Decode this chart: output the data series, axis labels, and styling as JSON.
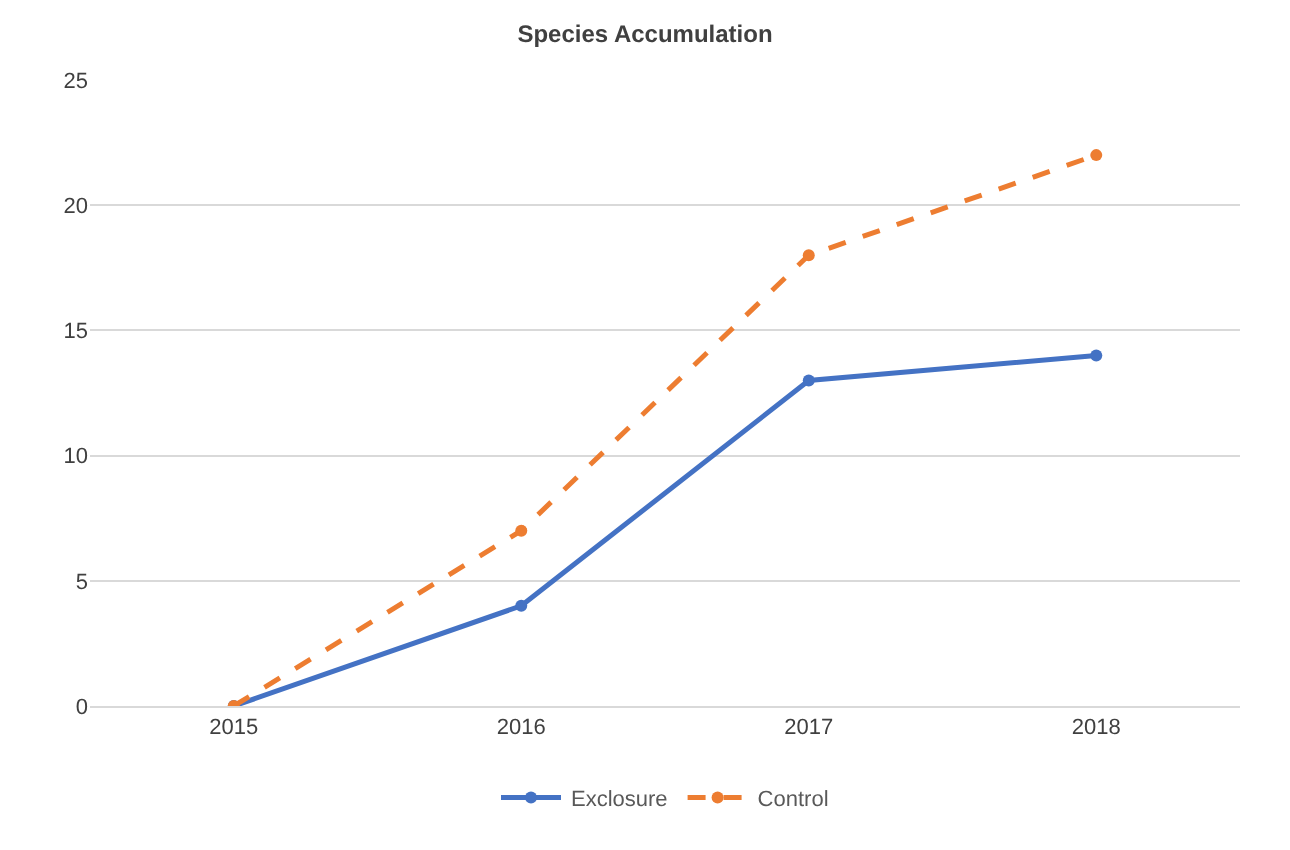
{
  "chart_data": {
    "type": "line",
    "title": "Species Accumulation",
    "categories": [
      "2015",
      "2016",
      "2017",
      "2018"
    ],
    "series": [
      {
        "name": "Exclosure",
        "color": "#4472c4",
        "values": [
          0,
          4,
          13,
          14
        ],
        "line_style": "solid"
      },
      {
        "name": "Control",
        "color": "#ed7d31",
        "values": [
          0,
          7,
          18,
          22
        ],
        "line_style": "dashed"
      }
    ],
    "ylim": [
      0,
      25
    ],
    "yticks": [
      0,
      5,
      10,
      15,
      20,
      25
    ],
    "grid": "y",
    "legend": "bottom",
    "marker": "circle"
  }
}
